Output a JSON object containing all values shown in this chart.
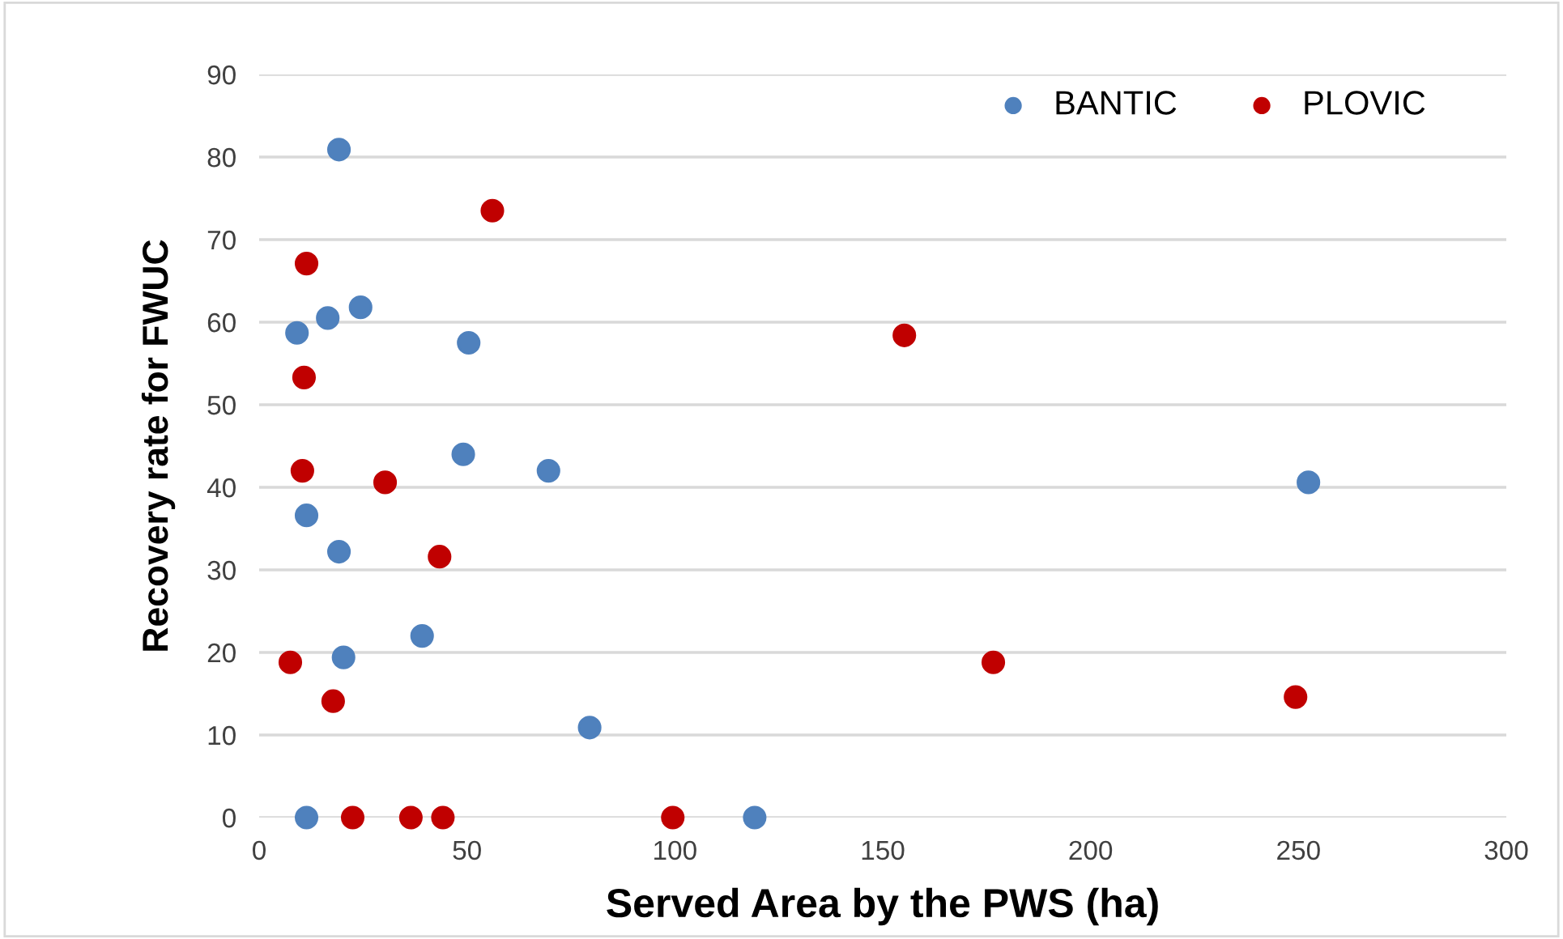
{
  "chart_data": {
    "type": "scatter",
    "xlabel": "Served Area by the PWS (ha)",
    "ylabel": "Recovery rate for FWUC",
    "xlim": [
      0,
      300
    ],
    "xticks": [
      0,
      50,
      100,
      150,
      200,
      250,
      300
    ],
    "ylim": [
      0,
      90
    ],
    "yticks": [
      0,
      10,
      20,
      30,
      40,
      50,
      60,
      70,
      80,
      90
    ],
    "grid": "y",
    "legend": "top right",
    "marker": "circle",
    "series": [
      {
        "name": "BANTIC",
        "color": "#4f81bd",
        "x": [
          19.2,
          9.1,
          16.5,
          24.4,
          50.4,
          49.1,
          69.6,
          11.4,
          19.2,
          20.3,
          39.2,
          11.4,
          79.5,
          119.2,
          252.4
        ],
        "values": [
          80.9,
          58.7,
          60.5,
          61.8,
          57.5,
          44.0,
          42.0,
          36.6,
          32.2,
          19.4,
          22.0,
          0,
          10.9,
          0,
          40.6
        ]
      },
      {
        "name": "PLOVIC",
        "color": "#c00000",
        "x": [
          56.1,
          11.4,
          10.8,
          10.4,
          30.3,
          43.4,
          7.5,
          17.8,
          22.5,
          36.5,
          44.2,
          155.2,
          176.6,
          99.5,
          249.3
        ],
        "values": [
          73.5,
          67.1,
          53.3,
          42.0,
          40.6,
          31.6,
          18.8,
          14.1,
          0,
          0,
          0,
          58.4,
          18.8,
          0,
          14.6
        ]
      }
    ]
  }
}
